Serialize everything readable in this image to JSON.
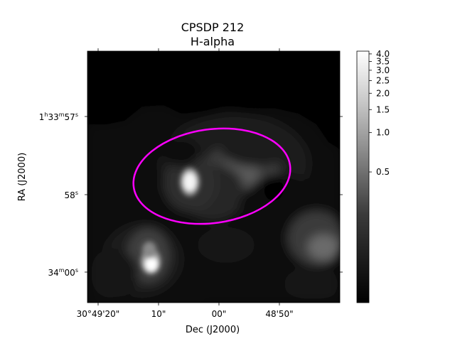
{
  "chart_data": {
    "type": "heatmap",
    "title": "CPSDP 212",
    "subtitle": "H-alpha",
    "xlabel": "Dec (J2000)",
    "ylabel": "RA (J2000)",
    "x_ticks": [
      "30°49'20\"",
      "10\"",
      "00\"",
      "48'50\""
    ],
    "y_ticks": [
      {
        "main": "1",
        "sup1": "h",
        "mid": "33",
        "sup2": "m",
        "tail": "57",
        "sup3": "s"
      },
      {
        "main": "",
        "sup1": "",
        "mid": "",
        "sup2": "",
        "tail": "58",
        "sup3": "s"
      },
      {
        "main": "",
        "sup1": "",
        "mid": "34",
        "sup2": "m",
        "tail": "00",
        "sup3": "s"
      }
    ],
    "colorbar": {
      "colormap": "gray",
      "scale": "log",
      "range": [
        0.05,
        4.2
      ],
      "ticks": [
        0.5,
        1.0,
        1.5,
        2.0,
        2.5,
        3.0,
        3.5,
        4.0
      ],
      "tick_labels": [
        "0.5",
        "1.0",
        "1.5",
        "2.0",
        "2.5",
        "3.0",
        "3.5",
        "4.0"
      ]
    },
    "ellipse_color": "#ff00ff",
    "grid": false
  }
}
